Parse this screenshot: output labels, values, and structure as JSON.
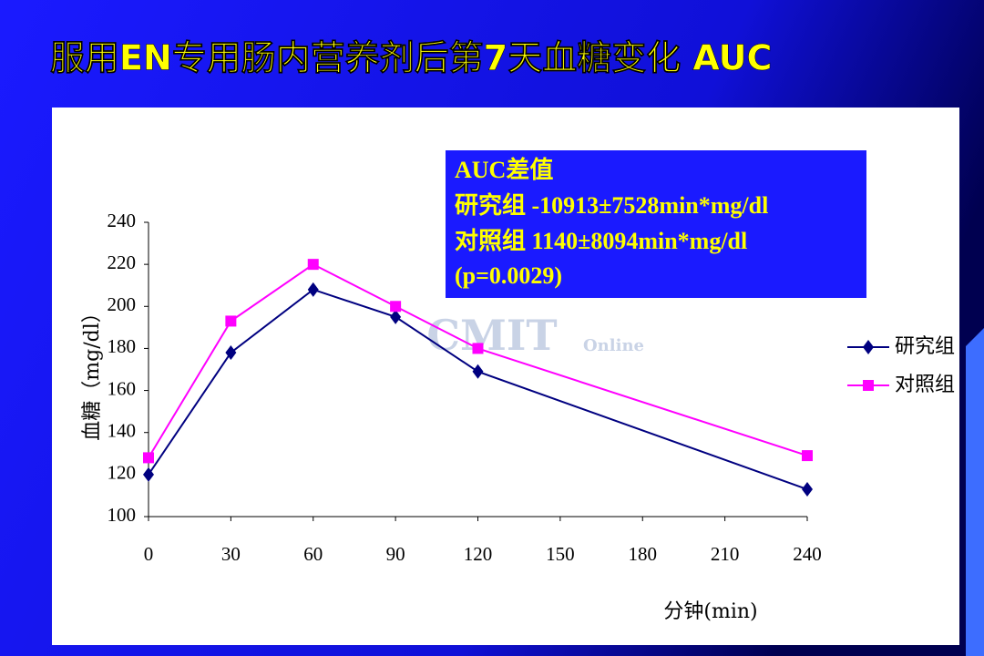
{
  "chart_data": {
    "type": "line",
    "title": "服用EN专用肠内营养剂后第7天血糖变化 AUC",
    "annotation": [
      "AUC差值",
      "研究组 -10913±7528min*mg/dl",
      "对照组  1140±8094min*mg/dl",
      "(p=0.0029)"
    ],
    "watermark": "CMIT",
    "watermark_sub": "Online",
    "x_label": "分钟(min)",
    "y_label": "血糖（mg/dl）",
    "x": [
      0,
      30,
      60,
      90,
      120,
      240
    ],
    "series": [
      {
        "name": "研究组",
        "color": "#000080",
        "marker": "diamond",
        "values": [
          120,
          178,
          208,
          195,
          169,
          113
        ]
      },
      {
        "name": "对照组",
        "color": "#ff00ff",
        "marker": "square",
        "values": [
          128,
          193,
          220,
          200,
          180,
          129
        ]
      }
    ],
    "xlim": [
      0,
      240
    ],
    "xticks": [
      0,
      30,
      60,
      90,
      120,
      150,
      180,
      210,
      240
    ],
    "ylim": [
      100,
      240
    ],
    "yticks": [
      100,
      120,
      140,
      160,
      180,
      200,
      220,
      240
    ],
    "grid": false,
    "legend": "right"
  }
}
